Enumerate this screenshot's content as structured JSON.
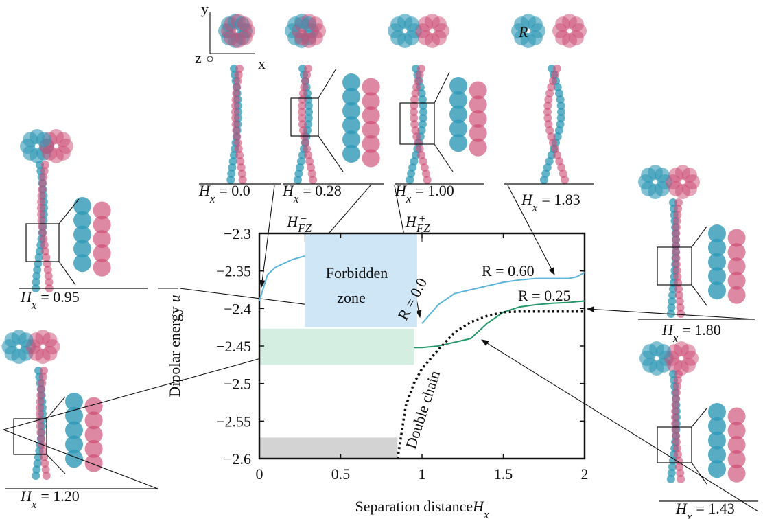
{
  "chart_data": {
    "type": "line",
    "xlabel": "Separation distance",
    "xlabel_symbol": "H",
    "xlabel_subscript": "x",
    "ylabel": "Dipolar energy",
    "ylabel_symbol": "u",
    "xlim": [
      0,
      2
    ],
    "ylim": [
      -2.6,
      -2.3
    ],
    "xticks": [
      0,
      0.5,
      1,
      1.5,
      2
    ],
    "yticks": [
      {
        "value": -2.3,
        "label": "−2.3"
      },
      {
        "value": -2.35,
        "label": "−2.35"
      },
      {
        "value": -2.4,
        "label": "−2.4"
      },
      {
        "value": -2.45,
        "label": "−2.45"
      },
      {
        "value": -2.5,
        "label": "−2.5"
      },
      {
        "value": -2.55,
        "label": "−2.55"
      },
      {
        "value": -2.6,
        "label": "−2.6"
      }
    ],
    "x": [
      0,
      0.05,
      0.1,
      0.2,
      0.28,
      0.85,
      0.9,
      0.95,
      1.0,
      1.1,
      1.2,
      1.3,
      1.4,
      1.5,
      1.6,
      1.7,
      1.8,
      1.9,
      1.95,
      2.0
    ],
    "series": [
      {
        "name": "R = 0.60",
        "color": "#5ab4dc",
        "dash": false,
        "values": [
          -2.39,
          -2.355,
          -2.345,
          -2.335,
          -2.33,
          null,
          null,
          null,
          -2.42,
          -2.395,
          -2.38,
          -2.375,
          -2.37,
          -2.365,
          -2.362,
          -2.36,
          -2.36,
          -2.36,
          -2.358,
          -2.352
        ]
      },
      {
        "name": "R = 0.25",
        "color": "#23976a",
        "dash": false,
        "values": [
          null,
          null,
          null,
          null,
          null,
          null,
          null,
          -2.452,
          -2.452,
          -2.45,
          -2.445,
          -2.44,
          -2.42,
          -2.405,
          -2.398,
          -2.395,
          -2.393,
          -2.392,
          -2.391,
          -2.39
        ]
      },
      {
        "name": "R = 0.0",
        "color": "#111111",
        "dash": true,
        "values": [
          null,
          null,
          null,
          null,
          null,
          -2.6,
          -2.53,
          -2.5,
          -2.48,
          -2.455,
          -2.432,
          -2.418,
          -2.41,
          -2.405,
          -2.404,
          -2.404,
          -2.404,
          -2.404,
          -2.404,
          -2.404
        ]
      }
    ],
    "shaded_regions": [
      {
        "color": "#cfe6f6",
        "xlim": [
          0.28,
          0.97
        ],
        "ylim": [
          -2.425,
          -2.3
        ]
      },
      {
        "color": "#d4eee2",
        "xlim": [
          0,
          0.95
        ],
        "ylim": [
          -2.475,
          -2.427
        ]
      },
      {
        "color": "#d3d3d3",
        "xlim": [
          0,
          0.85
        ],
        "ylim": [
          -2.6,
          -2.572
        ]
      }
    ],
    "forbidden_zone_label": [
      "Forbidden",
      "zone"
    ],
    "double_chain_label": "Double chain",
    "zone_bounds": [
      {
        "value": 0.28,
        "symbol": "H",
        "subscript": "FZ",
        "superscript": "−"
      },
      {
        "value": 1.0,
        "symbol": "H",
        "subscript": "FZ",
        "superscript": "+"
      }
    ],
    "panel_symbol": "H",
    "panel_subscript": "x",
    "panels": [
      "= 0.0",
      "= 0.28",
      "= 1.00",
      "= 1.83",
      "= 0.95",
      "= 1.20",
      "= 1.80",
      "= 1.43"
    ],
    "axes_labels": [
      "y",
      "x",
      "z"
    ],
    "radius_symbol": "R"
  }
}
